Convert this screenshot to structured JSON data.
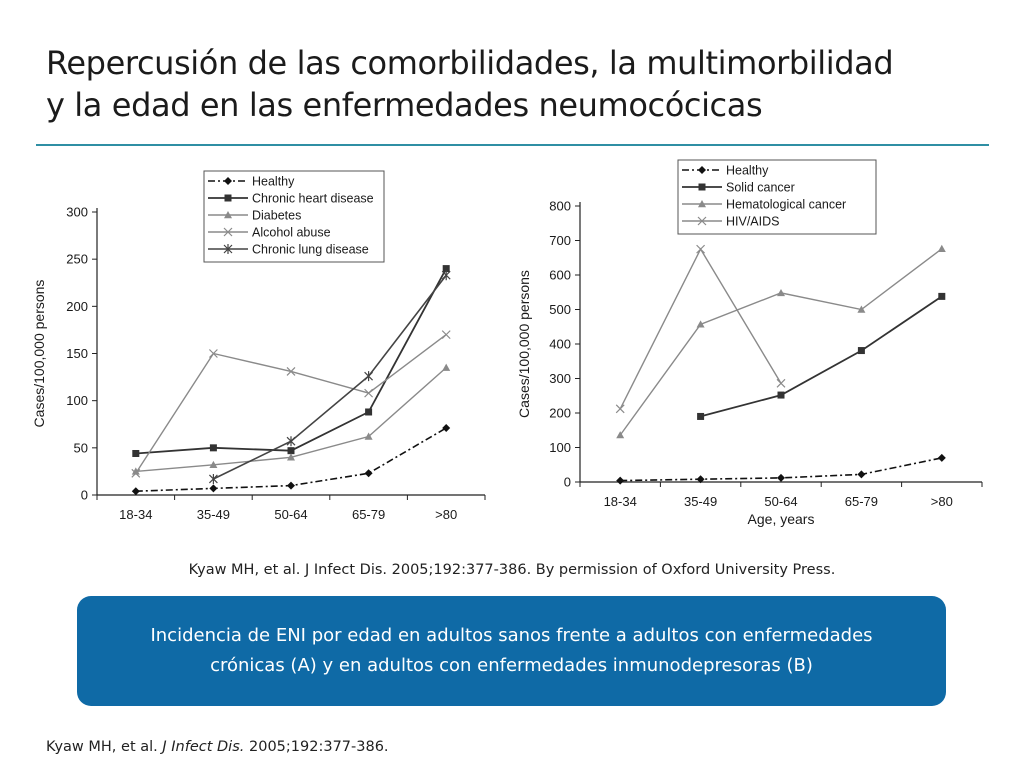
{
  "slide": {
    "title_line1": "Repercusión de las comorbilidades, la multimorbilidad",
    "title_line2": "y la edad en las enfermedades neumocócicas",
    "citation": "Kyaw MH, et al. J Infect Dis. 2005;192:377-386. By permission of Oxford University Press.",
    "banner_line1": "Incidencia de ENI por edad en adultos sanos frente a adultos con enfermedades",
    "banner_line2": "crónicas (A) y en adultos con enfermedades inmunodepresoras (B)",
    "ref_authors": "Kyaw MH, et al. ",
    "ref_journal": "J Infect Dis.",
    "ref_details": " 2005;192:377-386.",
    "accent_color": "#2f8fa4",
    "banner_color": "#0f6aa6"
  },
  "chart_data": [
    {
      "type": "line",
      "categories": [
        "18-34",
        "35-49",
        "50-64",
        "65-79",
        ">80"
      ],
      "ylabel": "Cases/100,000 persons",
      "xlabel": "",
      "ylim": [
        0,
        300
      ],
      "yticks": [
        0,
        50,
        100,
        150,
        200,
        250,
        300
      ],
      "legend_position": "top-center",
      "series": [
        {
          "name": "Healthy",
          "values": [
            4,
            7,
            10,
            23,
            71
          ],
          "marker": "diamond",
          "dash": "dashdot",
          "color": "#111111",
          "width": 1.6
        },
        {
          "name": "Chronic heart disease",
          "values": [
            44,
            50,
            47,
            88,
            240
          ],
          "marker": "square",
          "dash": "solid",
          "color": "#333333",
          "width": 1.8
        },
        {
          "name": "Diabetes",
          "values": [
            25,
            32,
            40,
            62,
            135
          ],
          "marker": "triangle",
          "dash": "solid",
          "color": "#8a8a8a",
          "width": 1.4
        },
        {
          "name": "Alcohol abuse",
          "values": [
            23,
            150,
            131,
            108,
            170
          ],
          "marker": "x",
          "dash": "solid",
          "color": "#8a8a8a",
          "width": 1.4
        },
        {
          "name": "Chronic lung disease",
          "values": [
            null,
            17,
            57,
            126,
            233
          ],
          "marker": "star",
          "dash": "solid",
          "color": "#444444",
          "width": 1.6
        }
      ]
    },
    {
      "type": "line",
      "categories": [
        "18-34",
        "35-49",
        "50-64",
        "65-79",
        ">80"
      ],
      "ylabel": "Cases/100,000 persons",
      "xlabel": "Age, years",
      "ylim": [
        0,
        800
      ],
      "yticks": [
        0,
        100,
        200,
        300,
        400,
        500,
        600,
        700,
        800
      ],
      "legend_position": "top-left",
      "series": [
        {
          "name": "Healthy",
          "values": [
            4,
            8,
            12,
            22,
            70
          ],
          "marker": "diamond",
          "dash": "dashdot",
          "color": "#111111",
          "width": 1.6
        },
        {
          "name": "Solid cancer",
          "values": [
            null,
            190,
            252,
            381,
            538
          ],
          "marker": "square",
          "dash": "solid",
          "color": "#333333",
          "width": 1.8
        },
        {
          "name": "Hematological cancer",
          "values": [
            136,
            457,
            548,
            500,
            676
          ],
          "marker": "triangle",
          "dash": "solid",
          "color": "#8a8a8a",
          "width": 1.4
        },
        {
          "name": "HIV/AIDS",
          "values": [
            212,
            675,
            286,
            null,
            null
          ],
          "marker": "x",
          "dash": "solid",
          "color": "#8a8a8a",
          "width": 1.4
        }
      ]
    }
  ]
}
